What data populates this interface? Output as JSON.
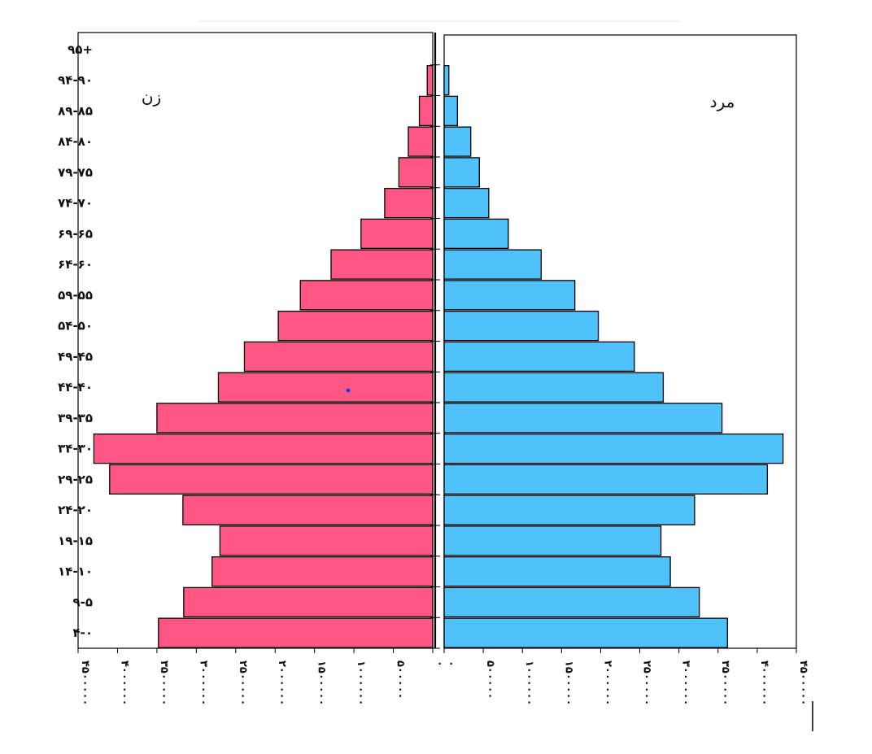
{
  "chart_data": {
    "type": "bar",
    "orientation": "horizontal",
    "layout": "population-pyramid",
    "categories": [
      "۰-۴",
      "۵-۹",
      "۱۰-۱۴",
      "۱۵-۱۹",
      "۲۰-۲۴",
      "۲۵-۲۹",
      "۳۰-۳۴",
      "۳۵-۳۹",
      "۴۰-۴۴",
      "۴۵-۴۹",
      "۵۰-۵۴",
      "۵۵-۵۹",
      "۶۰-۶۴",
      "۶۵-۶۹",
      "۷۰-۷۴",
      "۷۵-۷۹",
      "۸۰-۸۴",
      "۸۵-۸۹",
      "۹۰-۹۴",
      "۹۵+"
    ],
    "category_labels_displayed": [
      "۴-۰",
      "۹-۵",
      "۱۴-۱۰",
      "۱۹-۱۵",
      "۲۴-۲۰",
      "۲۹-۲۵",
      "۳۴-۳۰",
      "۳۹-۳۵",
      "۴۴-۴۰",
      "۴۹-۴۵",
      "۵۴-۵۰",
      "۵۹-۵۵",
      "۶۴-۶۰",
      "۶۹-۶۵",
      "۷۴-۷۰",
      "۷۹-۷۵",
      "۸۴-۸۰",
      "۸۹-۸۵",
      "۹۴-۹۰",
      "۹۵+"
    ],
    "series": [
      {
        "name": "زن",
        "side": "left",
        "color": "#ff5784",
        "values": [
          3480000,
          3160000,
          2800000,
          2700000,
          3170000,
          4100000,
          4300000,
          3500000,
          2720000,
          2390000,
          1960000,
          1680000,
          1290000,
          910000,
          610000,
          430000,
          310000,
          170000,
          70000,
          0
        ]
      },
      {
        "name": "مرد",
        "side": "right",
        "color": "#4fc1fb",
        "values": [
          3620000,
          3260000,
          2890000,
          2770000,
          3200000,
          4130000,
          4330000,
          3550000,
          2800000,
          2430000,
          1970000,
          1670000,
          1240000,
          820000,
          570000,
          450000,
          340000,
          170000,
          60000,
          0
        ]
      }
    ],
    "xlim": [
      0,
      4500000
    ],
    "x_ticks_left": [
      "۴۵۰۰۰۰۰",
      "۴۰۰۰۰۰۰",
      "۳۵۰۰۰۰۰",
      "۳۰۰۰۰۰۰",
      "۲۵۰۰۰۰۰",
      "۲۰۰۰۰۰۰",
      "۱۵۰۰۰۰۰",
      "۱۰۰۰۰۰۰",
      "۵۰۰۰۰۰",
      "۰"
    ],
    "x_ticks_right": [
      "۰",
      "۵۰۰۰۰۰",
      "۱۰۰۰۰۰۰",
      "۱۵۰۰۰۰۰",
      "۲۰۰۰۰۰۰",
      "۲۵۰۰۰۰۰",
      "۳۰۰۰۰۰۰",
      "۳۵۰۰۰۰۰",
      "۴۰۰۰۰۰۰",
      "۴۵۰۰۰۰۰"
    ],
    "title": "",
    "xlabel": "",
    "ylabel": "",
    "grid": false,
    "legend": "none"
  }
}
